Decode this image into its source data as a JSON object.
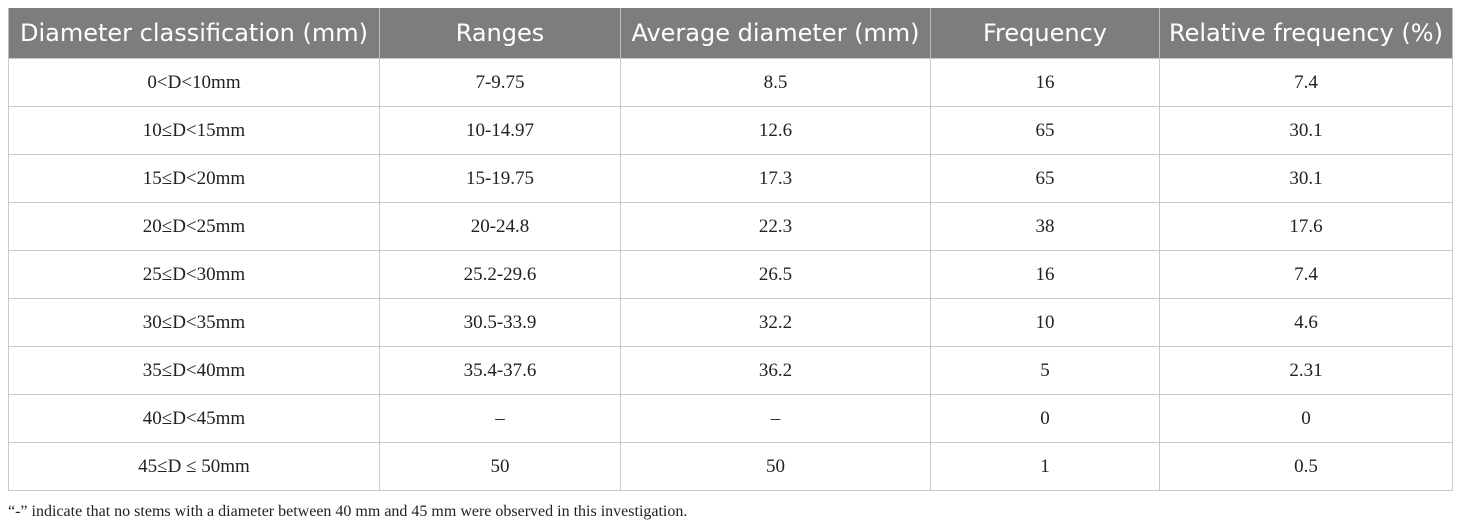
{
  "table": {
    "headers": [
      "Diameter classification (mm)",
      "Ranges",
      "Average diameter (mm)",
      "Frequency",
      "Relative frequency (%)"
    ],
    "rows": [
      [
        "0<D<10mm",
        "7-9.75",
        "8.5",
        "16",
        "7.4"
      ],
      [
        "10≤D<15mm",
        "10-14.97",
        "12.6",
        "65",
        "30.1"
      ],
      [
        "15≤D<20mm",
        "15-19.75",
        "17.3",
        "65",
        "30.1"
      ],
      [
        "20≤D<25mm",
        "20-24.8",
        "22.3",
        "38",
        "17.6"
      ],
      [
        "25≤D<30mm",
        "25.2-29.6",
        "26.5",
        "16",
        "7.4"
      ],
      [
        "30≤D<35mm",
        "30.5-33.9",
        "32.2",
        "10",
        "4.6"
      ],
      [
        "35≤D<40mm",
        "35.4-37.6",
        "36.2",
        "5",
        "2.31"
      ],
      [
        "40≤D<45mm",
        "–",
        "–",
        "0",
        "0"
      ],
      [
        "45≤D ≤ 50mm",
        "50",
        "50",
        "1",
        "0.5"
      ]
    ]
  },
  "footnote": "“-” indicate that no stems with a diameter between 40 mm and 45 mm were observed in this investigation.",
  "colors": {
    "header_bg": "#7d7d7d",
    "header_text": "#ffffff",
    "grid": "#c9c9c9"
  }
}
